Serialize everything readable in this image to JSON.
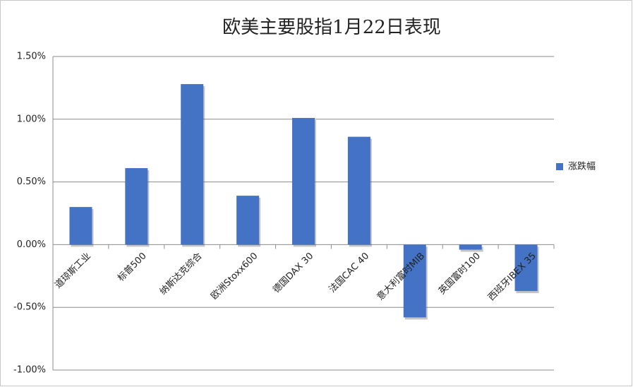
{
  "chart_data": {
    "type": "bar",
    "title": "欧美主要股指1月22日表现",
    "categories": [
      "道琼斯工业",
      "标普500",
      "纳斯达克综合",
      "欧洲Stoxx600",
      "德国DAX 30",
      "法国CAC 40",
      "意大利富时MIB",
      "英国富时100",
      "西班牙IBEX 35"
    ],
    "series": [
      {
        "name": "涨跌幅",
        "color": "#4472c4",
        "values": [
          0.3,
          0.61,
          1.28,
          0.39,
          1.01,
          0.86,
          -0.58,
          -0.04,
          -0.37
        ]
      }
    ],
    "ylim": [
      -1.0,
      1.5
    ],
    "yticks": [
      {
        "value": -1.0,
        "label": "-1.00%"
      },
      {
        "value": -0.5,
        "label": "-0.50%"
      },
      {
        "value": 0,
        "label": "0.00%"
      },
      {
        "value": 0.5,
        "label": "0.50%"
      },
      {
        "value": 1.0,
        "label": "1.00%"
      },
      {
        "value": 1.5,
        "label": "1.50%"
      }
    ],
    "grid": true,
    "legend": "right"
  }
}
